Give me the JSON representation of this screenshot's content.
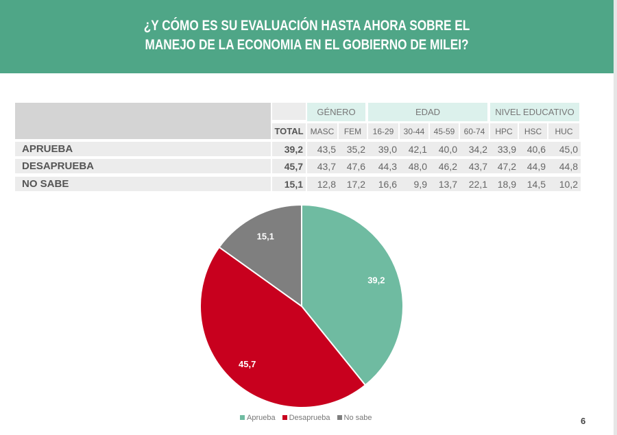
{
  "title_lines": [
    "¿Y CÓMO ES SU EVALUACIÓN HASTA AHORA SOBRE EL",
    "MANEJO DE LA ECONOMIA EN EL GOBIERNO DE MILEI?"
  ],
  "table": {
    "groups": [
      "GÉNERO",
      "EDAD",
      "NIVEL EDUCATIVO"
    ],
    "columns": [
      "TOTAL",
      "MASC",
      "FEM",
      "16-29",
      "30-44",
      "45-59",
      "60-74",
      "HPC",
      "HSC",
      "HUC"
    ],
    "rows": [
      {
        "label": "APRUEBA",
        "values": [
          "39,2",
          "43,5",
          "35,2",
          "39,0",
          "42,1",
          "40,0",
          "34,2",
          "33,9",
          "40,6",
          "45,0"
        ]
      },
      {
        "label": "DESAPRUEBA",
        "values": [
          "45,7",
          "43,7",
          "47,6",
          "44,3",
          "48,0",
          "46,2",
          "43,7",
          "47,2",
          "44,9",
          "44,8"
        ]
      },
      {
        "label": "NO SABE",
        "values": [
          "15,1",
          "12,8",
          "17,2",
          "16,6",
          "9,9",
          "13,7",
          "22,1",
          "18,9",
          "14,5",
          "10,2"
        ]
      }
    ]
  },
  "chart_data": {
    "type": "pie",
    "categories": [
      "Aprueba",
      "Desaprueba",
      "No sabe"
    ],
    "values": [
      39.2,
      45.7,
      15.1
    ],
    "labels": [
      "39,2",
      "45,7",
      "15,1"
    ],
    "colors": [
      "#6fbba1",
      "#c8001e",
      "#7f7f7f"
    ],
    "legend": "bottom"
  },
  "page_number": "6"
}
